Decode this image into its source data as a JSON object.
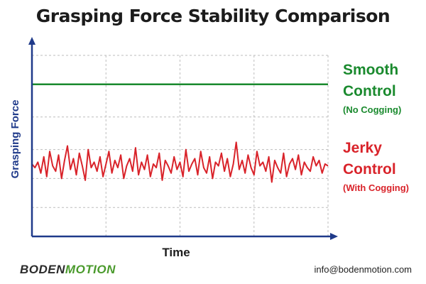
{
  "colors": {
    "smooth": "#1a8a2e",
    "jerky": "#d9232a",
    "axis": "#1f3a8a",
    "grid": "#bdbdbd",
    "title": "#1c1c1c",
    "logo_dark": "#2a2a2a",
    "logo_green": "#4a9a2c"
  },
  "chart_data": {
    "type": "line",
    "title": "Grasping Force Stability Comparison",
    "xlabel": "Time",
    "ylabel": "Grasping Force",
    "xlim": [
      0,
      100
    ],
    "ylim": [
      0,
      100
    ],
    "grid": true,
    "legend_position": "right",
    "series": [
      {
        "name": "Smooth Control",
        "subtitle": "(No Cogging)",
        "color": "#1a8a2e",
        "x": [
          0,
          100
        ],
        "y": [
          84,
          84
        ]
      },
      {
        "name": "Jerky Control",
        "subtitle": "(With Cogging)",
        "color": "#d9232a",
        "x": [
          0,
          1,
          2,
          3,
          4,
          5,
          6,
          7,
          8,
          9,
          10,
          11,
          12,
          13,
          14,
          15,
          16,
          17,
          18,
          19,
          20,
          21,
          22,
          23,
          24,
          25,
          26,
          27,
          28,
          29,
          30,
          31,
          32,
          33,
          34,
          35,
          36,
          37,
          38,
          39,
          40,
          41,
          42,
          43,
          44,
          45,
          46,
          47,
          48,
          49,
          50,
          51,
          52,
          53,
          54,
          55,
          56,
          57,
          58,
          59,
          60,
          61,
          62,
          63,
          64,
          65,
          66,
          67,
          68,
          69,
          70,
          71,
          72,
          73,
          74,
          75,
          76,
          77,
          78,
          79,
          80,
          81,
          82,
          83,
          84,
          85,
          86,
          87,
          88,
          89,
          90,
          91,
          92,
          93,
          94,
          95,
          96,
          97,
          98,
          99,
          100
        ],
        "y": [
          40,
          38,
          41,
          35,
          44,
          33,
          47,
          39,
          36,
          45,
          32,
          42,
          50,
          37,
          43,
          34,
          46,
          39,
          31,
          48,
          38,
          41,
          36,
          44,
          33,
          40,
          47,
          35,
          42,
          38,
          45,
          32,
          39,
          43,
          36,
          49,
          34,
          41,
          37,
          45,
          33,
          40,
          38,
          46,
          31,
          42,
          39,
          35,
          44,
          37,
          41,
          33,
          48,
          36,
          40,
          43,
          34,
          47,
          38,
          35,
          44,
          32,
          41,
          39,
          46,
          36,
          43,
          33,
          40,
          52,
          37,
          42,
          35,
          45,
          38,
          34,
          47,
          39,
          41,
          36,
          44,
          30,
          42,
          38,
          35,
          46,
          33,
          40,
          43,
          37,
          45,
          34,
          41,
          38,
          36,
          44,
          39,
          42,
          35,
          40,
          39
        ]
      }
    ]
  },
  "branding": {
    "logo_boden": "BODEN",
    "logo_motion": "MOTION",
    "email": "info@bodenmotion.com"
  }
}
